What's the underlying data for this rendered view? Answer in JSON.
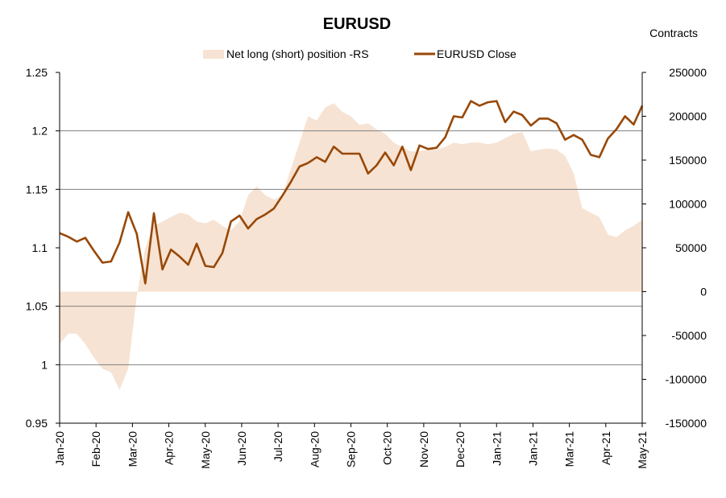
{
  "chart_data": {
    "type": "line",
    "title": "EURUSD",
    "right_axis_title": "Contracts",
    "legend": {
      "placement": "top-center",
      "area_label": "Net long (short) position -RS",
      "line_label": "EURUSD Close"
    },
    "colors": {
      "area": "#f7e3d3",
      "line": "#984807",
      "axis": "#000000",
      "grid": "#808080"
    },
    "x_labels": [
      "Jan-20",
      "Feb-20",
      "Mar-20",
      "Apr-20",
      "May-20",
      "Jun-20",
      "Jul-20",
      "Aug-20",
      "Sep-20",
      "Oct-20",
      "Nov-20",
      "Dec-20",
      "Jan-21",
      "Jan-21",
      "Mar-21",
      "Apr-21",
      "May-21"
    ],
    "left_axis": {
      "min": 0.95,
      "max": 1.25,
      "ticks": [
        1.25,
        1.2,
        1.15,
        1.1,
        1.05,
        1,
        0.95
      ],
      "tick_labels": [
        "1.25",
        "1.2",
        "1.15",
        "1.1",
        "1.05",
        "1",
        "0.95"
      ],
      "gridlines": [
        1.2,
        1.15,
        1.05,
        1
      ]
    },
    "right_axis": {
      "min": -150000,
      "max": 250000,
      "ticks": [
        250000,
        200000,
        150000,
        100000,
        50000,
        0,
        -50000,
        -100000,
        -150000
      ],
      "tick_labels": [
        "250000",
        "200000",
        "150000",
        "100000",
        "50000",
        "0",
        "-50000",
        "-100000",
        "-150000"
      ]
    },
    "series": [
      {
        "name": "EURUSD Close",
        "kind": "line",
        "axis": "left",
        "values": [
          1.1125,
          1.1095,
          1.1053,
          1.1085,
          1.0975,
          1.0873,
          1.0883,
          1.1045,
          1.1305,
          1.112,
          1.0695,
          1.1295,
          1.0815,
          1.0985,
          1.0925,
          1.0855,
          1.1035,
          1.0845,
          1.0835,
          1.0955,
          1.1225,
          1.1275,
          1.1165,
          1.1245,
          1.1285,
          1.1335,
          1.1445,
          1.1565,
          1.1695,
          1.1725,
          1.1775,
          1.1735,
          1.1865,
          1.1805,
          1.1805,
          1.1805,
          1.1635,
          1.1705,
          1.1815,
          1.1705,
          1.1865,
          1.1665,
          1.1875,
          1.1845,
          1.1855,
          1.1945,
          1.2125,
          1.2115,
          1.2255,
          1.2215,
          1.2245,
          1.2255,
          1.2075,
          1.2165,
          1.2135,
          1.2045,
          1.2105,
          1.2105,
          1.2065,
          1.1925,
          1.1965,
          1.1925,
          1.1795,
          1.1775,
          1.1935,
          1.2015,
          1.2125,
          1.2055,
          1.2215
        ]
      },
      {
        "name": "Net long (short) position -RS",
        "kind": "area",
        "axis": "right",
        "values": [
          -60000,
          -48000,
          -48000,
          -60000,
          -75000,
          -88000,
          -92000,
          -112000,
          -88000,
          -5000,
          50000,
          75000,
          80000,
          85000,
          90000,
          88000,
          80000,
          78000,
          82000,
          75000,
          70000,
          80000,
          110000,
          120000,
          110000,
          105000,
          110000,
          140000,
          170000,
          200000,
          195000,
          210000,
          215000,
          205000,
          200000,
          190000,
          192000,
          185000,
          180000,
          170000,
          165000,
          160000,
          160000,
          162000,
          162000,
          165000,
          170000,
          168000,
          170000,
          170000,
          168000,
          170000,
          175000,
          180000,
          182000,
          160000,
          162000,
          163000,
          162000,
          155000,
          135000,
          95000,
          90000,
          85000,
          65000,
          62000,
          70000,
          75000,
          82000
        ]
      }
    ]
  }
}
